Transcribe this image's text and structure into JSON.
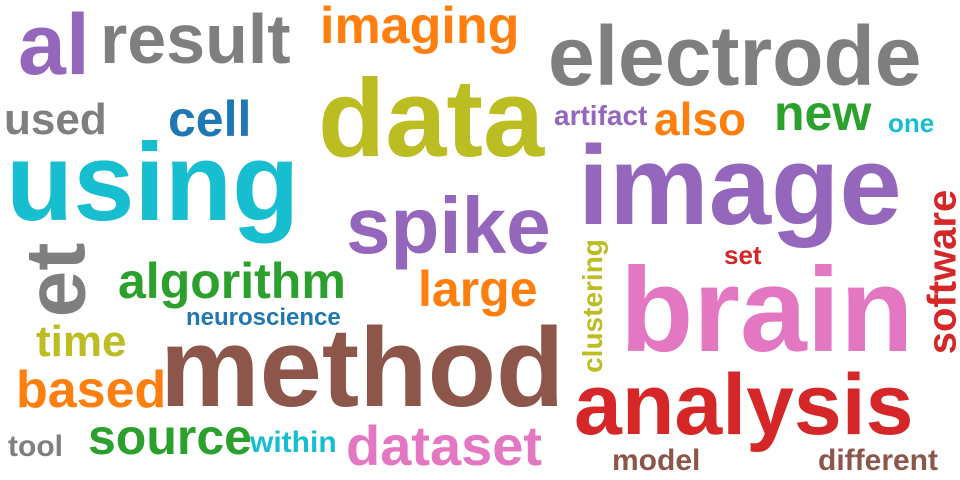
{
  "colors": {
    "red": "#d62728",
    "orange": "#ff7f0e",
    "green": "#2ca02c",
    "blue": "#1f77b4",
    "cyan": "#17becf",
    "purple": "#9467bd",
    "olive": "#bcbd22",
    "gray": "#7f7f7f",
    "brown": "#8c564b",
    "pink": "#e377c2"
  },
  "words": {
    "al": "al",
    "result": "result",
    "imaging": "imaging",
    "electrode": "electrode",
    "used": "used",
    "cell": "cell",
    "data": "data",
    "artifact": "artifact",
    "also": "also",
    "new": "new",
    "one": "one",
    "using": "using",
    "image": "image",
    "spike": "spike",
    "et": "et",
    "software": "software",
    "set": "set",
    "algorithm": "algorithm",
    "clustering": "clustering",
    "large": "large",
    "brain": "brain",
    "neuroscience": "neuroscience",
    "time": "time",
    "method": "method",
    "based": "based",
    "analysis": "analysis",
    "tool": "tool",
    "source": "source",
    "within": "within",
    "dataset": "dataset",
    "model": "model",
    "different": "different"
  }
}
